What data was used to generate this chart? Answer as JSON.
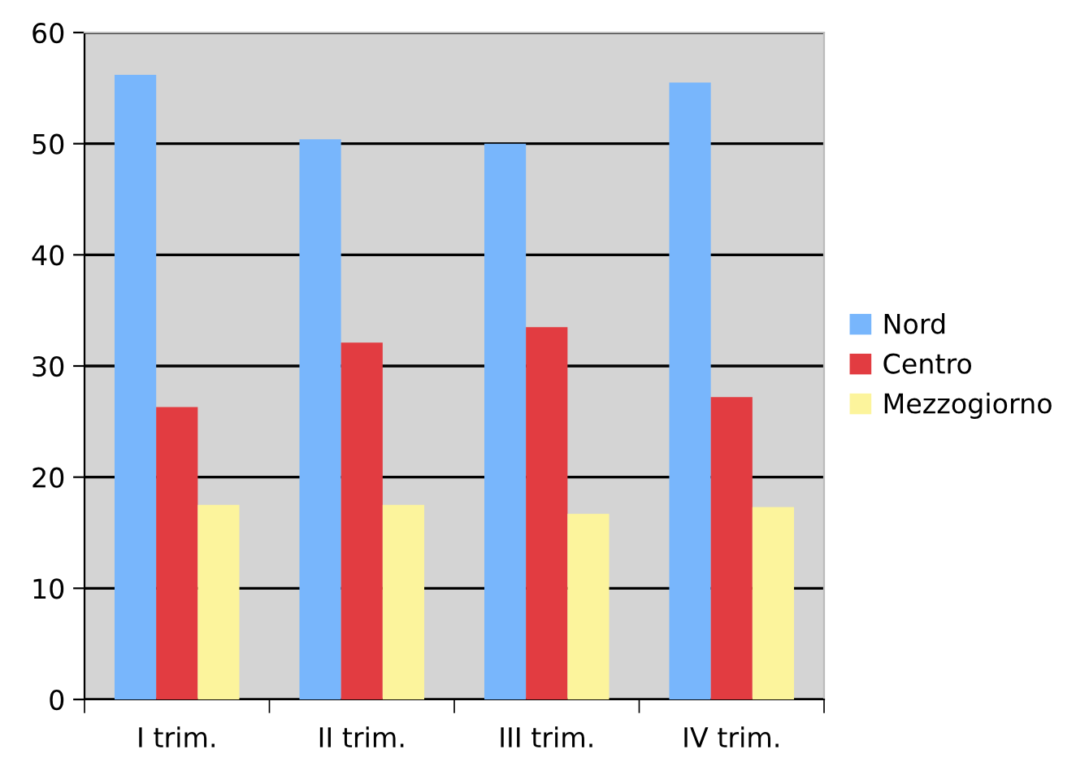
{
  "chart_data": {
    "type": "bar",
    "categories": [
      "I trim.",
      "II trim.",
      "III trim.",
      "IV trim."
    ],
    "series": [
      {
        "name": "Nord",
        "color": "#78b6fc",
        "values": [
          56.2,
          50.4,
          50.0,
          55.5
        ]
      },
      {
        "name": "Centro",
        "color": "#e23c41",
        "values": [
          26.3,
          32.1,
          33.5,
          27.2
        ]
      },
      {
        "name": "Mezzogiorno",
        "color": "#fcf49c",
        "values": [
          17.5,
          17.5,
          16.7,
          17.3
        ]
      }
    ],
    "ylim": [
      0,
      60
    ],
    "yticks": [
      0,
      10,
      20,
      30,
      40,
      50,
      60
    ],
    "grid": "y",
    "legend": "right"
  }
}
